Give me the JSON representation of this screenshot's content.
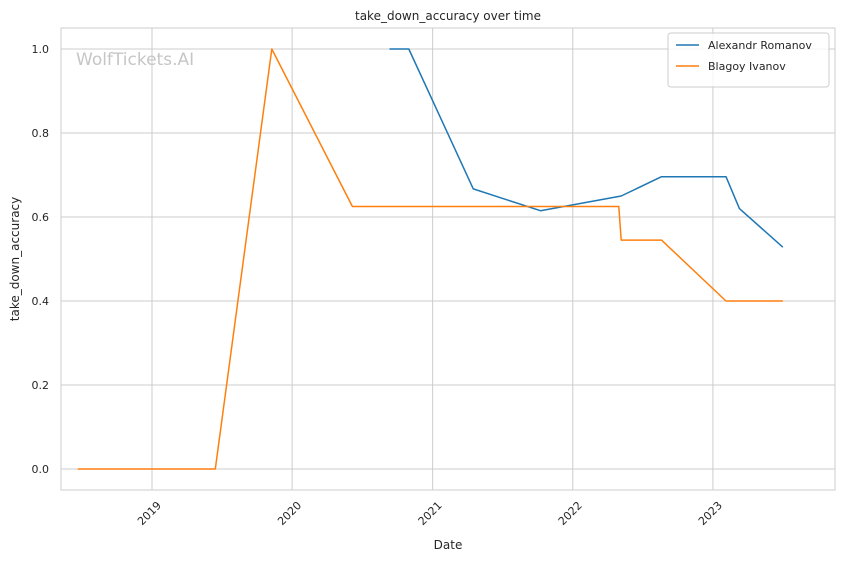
{
  "chart_data": {
    "type": "line",
    "title": "take_down_accuracy over time",
    "xlabel": "Date",
    "ylabel": "take_down_accuracy",
    "watermark": "WolfTickets.AI",
    "x_axis_type": "date",
    "xlim": [
      "2018-05-09",
      "2023-11-15"
    ],
    "ylim": [
      -0.05,
      1.05
    ],
    "xticks": [
      {
        "date": "2019-01-01",
        "label": "2019"
      },
      {
        "date": "2020-01-01",
        "label": "2020"
      },
      {
        "date": "2021-01-01",
        "label": "2021"
      },
      {
        "date": "2022-01-01",
        "label": "2022"
      },
      {
        "date": "2023-01-01",
        "label": "2023"
      }
    ],
    "yticks": [
      0.0,
      0.2,
      0.4,
      0.6,
      0.8,
      1.0
    ],
    "ytick_labels": [
      "0.0",
      "0.2",
      "0.4",
      "0.6",
      "0.8",
      "1.0"
    ],
    "grid": true,
    "legend_position": "top-right",
    "series": [
      {
        "name": "Alexandr Romanov",
        "color": "#1f77b4",
        "points": [
          {
            "x": "2020-09-12",
            "y": 1.0
          },
          {
            "x": "2020-10-31",
            "y": 1.0
          },
          {
            "x": "2021-04-17",
            "y": 0.667
          },
          {
            "x": "2021-10-09",
            "y": 0.615
          },
          {
            "x": "2022-05-07",
            "y": 0.65
          },
          {
            "x": "2022-08-20",
            "y": 0.696
          },
          {
            "x": "2023-02-04",
            "y": 0.696
          },
          {
            "x": "2023-03-11",
            "y": 0.62
          },
          {
            "x": "2023-07-01",
            "y": 0.529
          }
        ]
      },
      {
        "name": "Blagoy Ivanov",
        "color": "#ff7f0e",
        "points": [
          {
            "x": "2018-06-23",
            "y": 0.0
          },
          {
            "x": "2019-06-15",
            "y": 0.0
          },
          {
            "x": "2019-11-09",
            "y": 1.0
          },
          {
            "x": "2020-06-06",
            "y": 0.625
          },
          {
            "x": "2022-05-01",
            "y": 0.625
          },
          {
            "x": "2022-05-07",
            "y": 0.545
          },
          {
            "x": "2022-08-20",
            "y": 0.545
          },
          {
            "x": "2023-02-04",
            "y": 0.4
          },
          {
            "x": "2023-07-01",
            "y": 0.4
          }
        ]
      }
    ]
  }
}
